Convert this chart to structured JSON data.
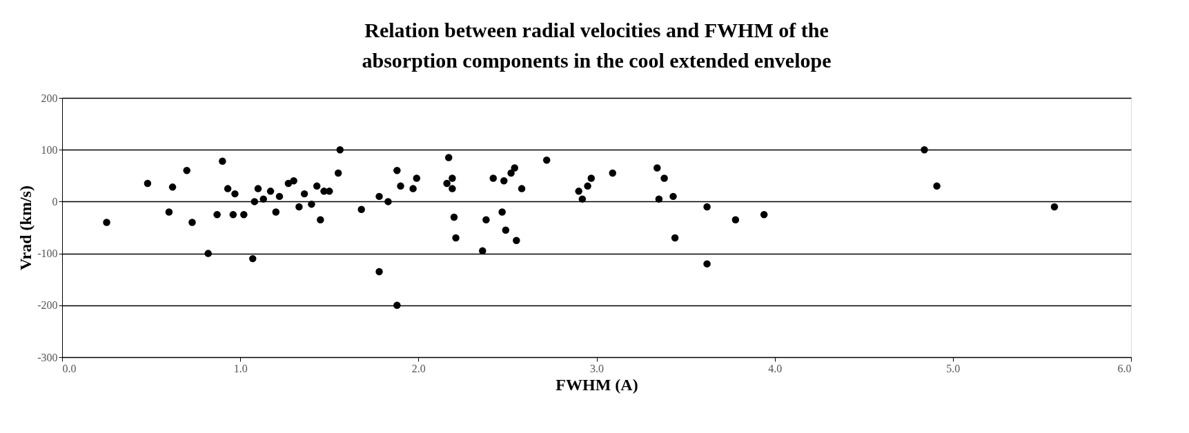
{
  "chart_data": {
    "type": "scatter",
    "title": [
      "Relation between radial velocities and FWHM of the",
      "absorption components in the cool extended envelope"
    ],
    "xlabel": "FWHM (A)",
    "ylabel": "Vrad (km/s)",
    "x": [
      0.25,
      0.48,
      0.6,
      0.62,
      0.7,
      0.73,
      0.82,
      0.87,
      0.9,
      0.93,
      0.96,
      0.97,
      1.02,
      1.07,
      1.08,
      1.1,
      1.13,
      1.17,
      1.2,
      1.22,
      1.27,
      1.3,
      1.33,
      1.36,
      1.4,
      1.43,
      1.45,
      1.47,
      1.5,
      1.55,
      1.56,
      1.68,
      1.78,
      1.78,
      1.83,
      1.88,
      1.88,
      1.9,
      1.97,
      1.99,
      2.17,
      2.16,
      2.19,
      2.19,
      2.2,
      2.21,
      2.36,
      2.38,
      2.42,
      2.47,
      2.48,
      2.49,
      2.52,
      2.54,
      2.55,
      2.58,
      2.72,
      2.9,
      2.92,
      2.95,
      2.97,
      3.09,
      3.34,
      3.35,
      3.38,
      3.43,
      3.44,
      3.62,
      3.62,
      3.78,
      3.94,
      4.84,
      4.91,
      5.57
    ],
    "series": [
      {
        "color": "#000000",
        "values": [
          -40,
          35,
          -20,
          28,
          60,
          -40,
          -100,
          -25,
          78,
          25,
          -25,
          15,
          -25,
          -110,
          0,
          25,
          5,
          20,
          -20,
          10,
          35,
          40,
          -10,
          15,
          -5,
          30,
          -35,
          20,
          20,
          55,
          100,
          -15,
          10,
          -135,
          0,
          60,
          -200,
          30,
          25,
          45,
          85,
          35,
          45,
          25,
          -30,
          -70,
          -95,
          -35,
          45,
          -20,
          40,
          -55,
          55,
          65,
          -75,
          25,
          80,
          20,
          5,
          30,
          45,
          55,
          65,
          5,
          45,
          10,
          -70,
          -10,
          -120,
          -35,
          -25,
          100,
          30,
          -10
        ]
      }
    ],
    "xlim": [
      0,
      6
    ],
    "xticks": [
      {
        "value": 0,
        "label": "0.0"
      },
      {
        "value": 1,
        "label": "1.0"
      },
      {
        "value": 2,
        "label": "2.0"
      },
      {
        "value": 3,
        "label": "3.0"
      },
      {
        "value": 4,
        "label": "4.0"
      },
      {
        "value": 5,
        "label": "5.0"
      },
      {
        "value": 6,
        "label": "6.0"
      }
    ],
    "ylim": [
      -300,
      200
    ],
    "yticks": [
      -300,
      -200,
      -100,
      0,
      100,
      200
    ],
    "grid": "y",
    "marker": "circle",
    "legend": false
  }
}
